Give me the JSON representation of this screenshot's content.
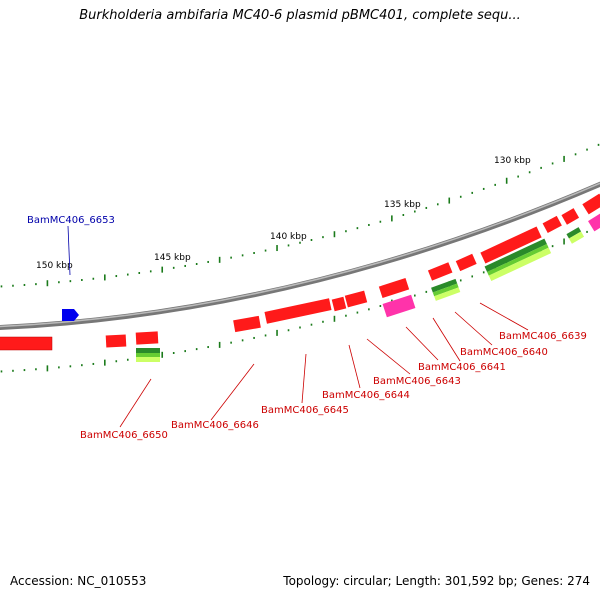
{
  "title": "Burkholderia ambifaria MC40-6 plasmid pBMC401, complete sequ...",
  "footer": {
    "accession": "Accession: NC_010553",
    "summary": "Topology: circular; Length: 301,592 bp; Genes: 274"
  },
  "scale_labels": [
    "130 kbp",
    "135 kbp",
    "140 kbp",
    "145 kbp",
    "150 kbp"
  ],
  "colors": {
    "backbone": "#8a8a8a",
    "gene_red": "#ff1a1a",
    "gene_magenta": "#ff33aa",
    "gene_green": "#2a8a2a",
    "gene_lime": "#ccff66",
    "highlight_blue": "#0000ee",
    "tick_green": "#1a7a1a",
    "label_red": "#cc0000",
    "label_blue": "#0000aa"
  },
  "gene_labels": {
    "top": [
      "BamMC406_6653"
    ],
    "bottom": [
      "BamMC406_6639",
      "BamMC406_6640",
      "BamMC406_6641",
      "BamMC406_6643",
      "BamMC406_6644",
      "BamMC406_6645",
      "BamMC406_6646",
      "BamMC406_6650"
    ]
  }
}
